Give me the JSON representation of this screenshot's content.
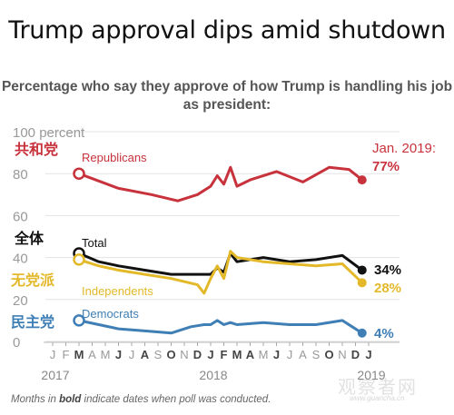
{
  "title": "Trump approval dips amid shutdown",
  "subtitle_line1": "Percentage who say they approve of how Trump is handling his job",
  "subtitle_line2": "as president:",
  "footnote_prefix": "Months in ",
  "footnote_bold": "bold",
  "footnote_suffix": " indicate dates when poll was conducted.",
  "watermark": "观察者网",
  "watermark_url": "www.guancha.cn",
  "chart_data": {
    "type": "line",
    "y_ticks": [
      {
        "value": 100,
        "label": "100 percent"
      },
      {
        "value": 80,
        "label": "80"
      },
      {
        "value": 60,
        "label": "60"
      },
      {
        "value": 40,
        "label": "40"
      },
      {
        "value": 20,
        "label": "20"
      },
      {
        "value": 0,
        "label": "0"
      }
    ],
    "ylim": [
      0,
      100
    ],
    "x_months": [
      {
        "label": "J",
        "bold": false
      },
      {
        "label": "F",
        "bold": false
      },
      {
        "label": "M",
        "bold": true
      },
      {
        "label": "A",
        "bold": false
      },
      {
        "label": "M",
        "bold": false
      },
      {
        "label": "J",
        "bold": true
      },
      {
        "label": "J",
        "bold": false
      },
      {
        "label": "A",
        "bold": true
      },
      {
        "label": "S",
        "bold": false
      },
      {
        "label": "O",
        "bold": true
      },
      {
        "label": "N",
        "bold": false
      },
      {
        "label": "D",
        "bold": true
      },
      {
        "label": "J",
        "bold": true
      },
      {
        "label": "F",
        "bold": true
      },
      {
        "label": "M",
        "bold": true
      },
      {
        "label": "A",
        "bold": true
      },
      {
        "label": "M",
        "bold": false
      },
      {
        "label": "J",
        "bold": true
      },
      {
        "label": "J",
        "bold": false
      },
      {
        "label": "A",
        "bold": false
      },
      {
        "label": "S",
        "bold": false
      },
      {
        "label": "O",
        "bold": true
      },
      {
        "label": "N",
        "bold": false
      },
      {
        "label": "D",
        "bold": true
      },
      {
        "label": "J",
        "bold": true
      }
    ],
    "year_labels": [
      {
        "label": "2017",
        "month_index": 0
      },
      {
        "label": "2018",
        "month_index": 12
      },
      {
        "label": "2019",
        "month_index": 24
      }
    ],
    "series": [
      {
        "key": "republicans",
        "name": "Republicans",
        "name_cn": "共和党",
        "color": "#c8323c",
        "end_label_prefix": "Jan. 2019:",
        "end_label": "77%",
        "x": [
          2,
          5,
          7.5,
          9.5,
          11,
          11.5,
          12,
          12.5,
          13,
          13.5,
          14,
          15,
          17,
          19,
          21,
          22.5,
          23.5
        ],
        "y": [
          80,
          73,
          70,
          67,
          70,
          72,
          74,
          79,
          75,
          83,
          74,
          77,
          81,
          76,
          83,
          82,
          77
        ]
      },
      {
        "key": "total",
        "name": "Total",
        "name_cn": "全体",
        "color": "#111111",
        "end_label": "34%",
        "x": [
          2,
          3.5,
          5,
          7,
          9,
          11,
          11.5,
          12,
          12.5,
          13,
          13.5,
          14,
          16,
          18,
          20,
          22,
          23.5
        ],
        "y": [
          42,
          38,
          36,
          34,
          32,
          32,
          32,
          32,
          35,
          33,
          42,
          38,
          40,
          38,
          39,
          41,
          34
        ]
      },
      {
        "key": "independents",
        "name": "Independents",
        "name_cn": "无党派",
        "color": "#e3b92a",
        "end_label": "28%",
        "x": [
          2,
          3.5,
          5,
          7,
          9,
          11,
          11.5,
          12,
          12.5,
          13,
          13.5,
          14,
          16,
          18,
          20,
          22,
          23.5
        ],
        "y": [
          39,
          36,
          34,
          32,
          30,
          27,
          23,
          30,
          36,
          30,
          43,
          40,
          38,
          37,
          36,
          37,
          28
        ]
      },
      {
        "key": "democrats",
        "name": "Democrats",
        "name_cn": "民主党",
        "color": "#3f7fb5",
        "end_label": "4%",
        "x": [
          2,
          5,
          7,
          9,
          10.5,
          11.5,
          12,
          12.5,
          13,
          13.5,
          14,
          16,
          18,
          20,
          22,
          23.5
        ],
        "y": [
          10,
          6,
          5,
          4,
          7,
          8,
          8,
          10,
          8,
          9,
          8,
          9,
          8,
          8,
          10,
          4
        ]
      }
    ]
  }
}
